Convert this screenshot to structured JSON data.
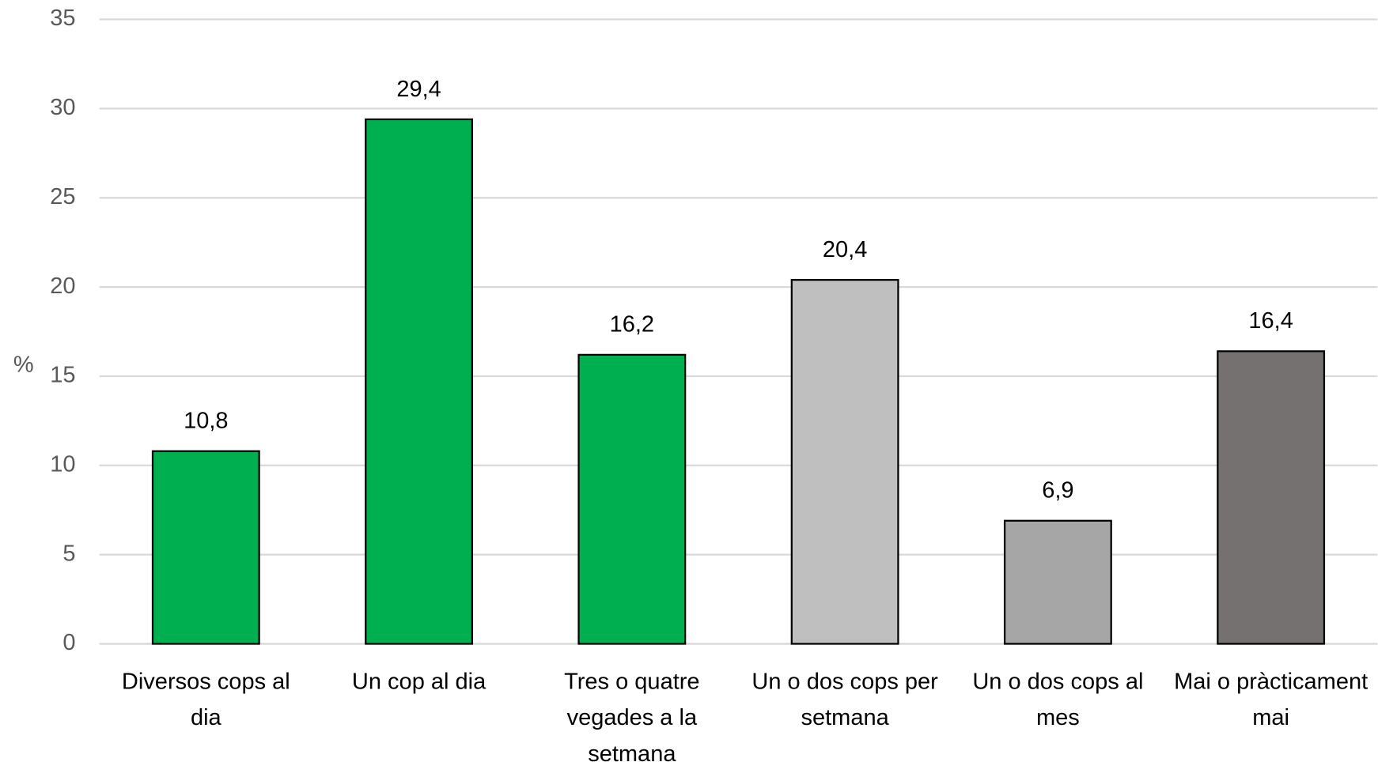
{
  "chart_data": {
    "type": "bar",
    "y_label": "%",
    "categories": [
      "Diversos cops al dia",
      "Un cop al dia",
      "Tres o quatre vegades a la setmana",
      "Un o dos cops per setmana",
      "Un o dos cops al mes",
      "Mai o pràcticament mai"
    ],
    "values": [
      10.8,
      29.4,
      16.2,
      20.4,
      6.9,
      16.4
    ],
    "value_labels": [
      "10,8",
      "29,4",
      "16,2",
      "20,4",
      "6,9",
      "16,4"
    ],
    "colors": [
      "#00b050",
      "#00b050",
      "#00b050",
      "#bfbfbf",
      "#a6a6a6",
      "#767171"
    ],
    "ylim": [
      0,
      35
    ],
    "yticks": [
      0,
      5,
      10,
      15,
      20,
      25,
      30,
      35
    ],
    "grid": true
  }
}
